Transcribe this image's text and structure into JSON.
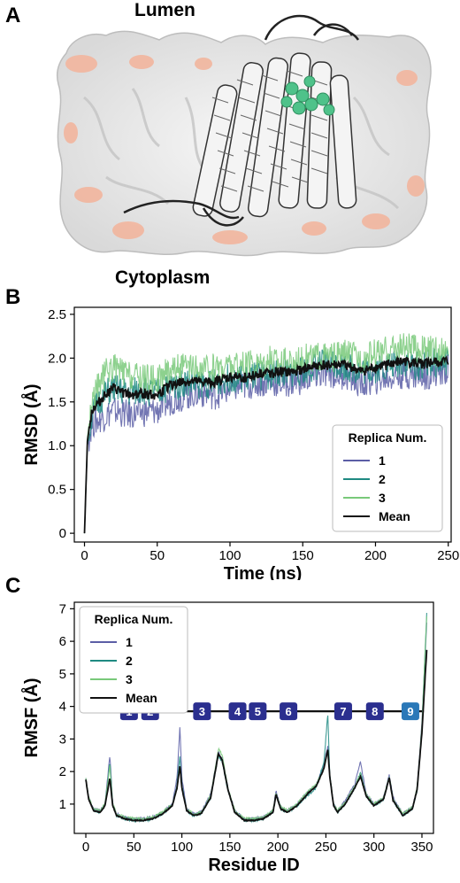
{
  "panels": {
    "a": {
      "letter": "A",
      "label_top": "Lumen",
      "label_bottom": "Cytoplasm"
    },
    "b": {
      "letter": "B"
    },
    "c": {
      "letter": "C"
    }
  },
  "colors": {
    "replica1": "#5b5ea6",
    "replica2": "#1f8a82",
    "replica3": "#79c97a",
    "mean": "#111111",
    "helix_box": "#2b2f8f",
    "helix_box_last": "#2a78b8",
    "surface": "#ececec",
    "surface_shade": "#c8c8c8",
    "hydrophobic": "#f3b39a",
    "ligand": "#4fc28a"
  },
  "chart_data": [
    {
      "type": "line",
      "panel": "B",
      "xlabel": "Time (ns)",
      "ylabel": "RMSD (Å)",
      "xlim": [
        -7,
        252
      ],
      "ylim": [
        -0.1,
        2.58
      ],
      "xticks": [
        0,
        50,
        100,
        150,
        200,
        250
      ],
      "yticks": [
        0,
        0.5,
        1.0,
        1.5,
        2.0,
        2.5
      ],
      "ytick_labels": [
        "0",
        "0.5",
        "1.0",
        "1.5",
        "2.0",
        "2.5"
      ],
      "legend_title": "Replica Num.",
      "legend_position": "lower-right",
      "series": [
        {
          "name": "1",
          "x": [
            0,
            2,
            5,
            10,
            15,
            20,
            25,
            30,
            40,
            50,
            60,
            70,
            80,
            90,
            100,
            110,
            120,
            130,
            140,
            150,
            160,
            170,
            180,
            190,
            200,
            210,
            220,
            230,
            240,
            250
          ],
          "values": [
            0,
            1.0,
            1.25,
            1.3,
            1.35,
            1.4,
            1.38,
            1.35,
            1.38,
            1.4,
            1.52,
            1.58,
            1.6,
            1.58,
            1.65,
            1.68,
            1.72,
            1.72,
            1.72,
            1.75,
            1.8,
            1.82,
            1.8,
            1.7,
            1.75,
            1.78,
            1.82,
            1.8,
            1.82,
            1.88
          ]
        },
        {
          "name": "2",
          "x": [
            0,
            2,
            5,
            10,
            15,
            20,
            25,
            30,
            40,
            50,
            60,
            70,
            80,
            90,
            100,
            110,
            120,
            130,
            140,
            150,
            160,
            170,
            180,
            190,
            200,
            210,
            220,
            230,
            240,
            250
          ],
          "values": [
            0,
            1.0,
            1.35,
            1.5,
            1.6,
            1.65,
            1.62,
            1.6,
            1.63,
            1.6,
            1.68,
            1.72,
            1.7,
            1.72,
            1.78,
            1.75,
            1.8,
            1.82,
            1.82,
            1.85,
            1.92,
            1.95,
            1.9,
            1.85,
            1.88,
            1.92,
            1.95,
            1.9,
            1.95,
            1.95
          ]
        },
        {
          "name": "3",
          "x": [
            0,
            2,
            5,
            10,
            15,
            20,
            25,
            30,
            40,
            50,
            60,
            70,
            80,
            90,
            100,
            110,
            120,
            130,
            140,
            150,
            160,
            170,
            180,
            190,
            200,
            210,
            220,
            230,
            240,
            250
          ],
          "values": [
            0,
            1.1,
            1.5,
            1.7,
            1.85,
            1.9,
            1.85,
            1.8,
            1.78,
            1.75,
            1.9,
            1.88,
            1.85,
            1.9,
            1.92,
            1.9,
            1.95,
            1.98,
            1.95,
            2.0,
            2.02,
            2.0,
            2.05,
            1.98,
            2.05,
            2.1,
            2.12,
            2.1,
            2.08,
            2.05
          ]
        },
        {
          "name": "Mean",
          "x": [
            0,
            2,
            5,
            10,
            15,
            20,
            25,
            30,
            40,
            50,
            60,
            70,
            80,
            90,
            100,
            110,
            120,
            130,
            140,
            150,
            160,
            170,
            180,
            190,
            200,
            210,
            220,
            230,
            240,
            250
          ],
          "values": [
            0,
            1.05,
            1.4,
            1.5,
            1.6,
            1.65,
            1.62,
            1.58,
            1.6,
            1.58,
            1.7,
            1.73,
            1.72,
            1.73,
            1.78,
            1.78,
            1.82,
            1.84,
            1.83,
            1.87,
            1.91,
            1.92,
            1.92,
            1.84,
            1.89,
            1.93,
            1.96,
            1.93,
            1.95,
            1.96
          ]
        }
      ]
    },
    {
      "type": "line",
      "panel": "C",
      "xlabel": "Residue ID",
      "ylabel": "RMSF (Å)",
      "xlim": [
        -12,
        362
      ],
      "ylim": [
        0.1,
        7.2
      ],
      "xticks": [
        0,
        50,
        100,
        150,
        200,
        250,
        300,
        350
      ],
      "yticks": [
        1,
        2,
        3,
        4,
        5,
        6,
        7
      ],
      "legend_title": "Replica Num.",
      "legend_position": "upper-left",
      "helix_line_y": 3.85,
      "helices": [
        {
          "label": "1",
          "x": 45
        },
        {
          "label": "2",
          "x": 67
        },
        {
          "label": "3",
          "x": 121
        },
        {
          "label": "4",
          "x": 158
        },
        {
          "label": "5",
          "x": 179
        },
        {
          "label": "6",
          "x": 211
        },
        {
          "label": "7",
          "x": 268
        },
        {
          "label": "8",
          "x": 301
        },
        {
          "label": "9",
          "x": 338
        }
      ],
      "series": [
        {
          "name": "1",
          "x": [
            0,
            3,
            8,
            15,
            20,
            25,
            28,
            32,
            40,
            50,
            60,
            70,
            80,
            90,
            95,
            98,
            100,
            105,
            112,
            120,
            130,
            138,
            142,
            148,
            155,
            165,
            175,
            185,
            195,
            198,
            203,
            210,
            220,
            232,
            240,
            248,
            252,
            254,
            258,
            262,
            270,
            280,
            286,
            292,
            300,
            310,
            316,
            320,
            330,
            340,
            345,
            350,
            355
          ],
          "values": [
            1.8,
            1.2,
            0.85,
            0.8,
            1.0,
            2.5,
            1.0,
            0.7,
            0.6,
            0.55,
            0.55,
            0.6,
            0.75,
            1.0,
            1.8,
            3.4,
            1.8,
            0.85,
            0.7,
            0.75,
            1.3,
            2.6,
            2.4,
            1.5,
            0.8,
            0.55,
            0.55,
            0.6,
            0.8,
            1.4,
            0.9,
            0.8,
            1.0,
            1.4,
            1.6,
            2.2,
            2.8,
            1.9,
            1.0,
            0.8,
            1.1,
            1.6,
            2.3,
            1.3,
            1.0,
            1.2,
            1.9,
            1.2,
            0.7,
            0.9,
            1.5,
            3.5,
            6.6
          ]
        },
        {
          "name": "2",
          "x": [
            0,
            3,
            8,
            15,
            20,
            25,
            28,
            32,
            40,
            50,
            60,
            70,
            80,
            90,
            95,
            98,
            100,
            105,
            112,
            120,
            130,
            138,
            142,
            148,
            155,
            165,
            175,
            185,
            195,
            198,
            203,
            210,
            220,
            232,
            240,
            248,
            252,
            254,
            258,
            262,
            270,
            280,
            286,
            292,
            300,
            310,
            316,
            320,
            330,
            340,
            345,
            350,
            355
          ],
          "values": [
            1.75,
            1.15,
            0.8,
            0.75,
            0.95,
            2.3,
            0.95,
            0.65,
            0.55,
            0.5,
            0.5,
            0.55,
            0.7,
            0.95,
            1.6,
            2.5,
            1.6,
            0.8,
            0.65,
            0.7,
            1.2,
            2.5,
            2.3,
            1.4,
            0.75,
            0.5,
            0.5,
            0.55,
            0.75,
            1.3,
            0.85,
            0.75,
            0.95,
            1.3,
            1.5,
            2.3,
            3.8,
            1.9,
            0.95,
            0.75,
            1.0,
            1.5,
            2.0,
            1.25,
            0.95,
            1.15,
            1.8,
            1.1,
            0.65,
            0.85,
            1.4,
            3.3,
            6.9
          ]
        },
        {
          "name": "3",
          "x": [
            0,
            3,
            8,
            15,
            20,
            25,
            28,
            32,
            40,
            50,
            60,
            70,
            80,
            90,
            95,
            98,
            100,
            105,
            112,
            120,
            130,
            138,
            142,
            148,
            155,
            165,
            175,
            185,
            195,
            198,
            203,
            210,
            220,
            232,
            240,
            248,
            252,
            254,
            258,
            262,
            270,
            280,
            286,
            292,
            300,
            310,
            316,
            320,
            330,
            340,
            345,
            350,
            355
          ],
          "values": [
            1.8,
            1.2,
            0.85,
            0.8,
            1.0,
            2.2,
            1.0,
            0.7,
            0.6,
            0.55,
            0.55,
            0.6,
            0.75,
            1.0,
            1.5,
            2.2,
            1.5,
            0.85,
            0.7,
            0.75,
            1.25,
            2.7,
            2.5,
            1.5,
            0.8,
            0.55,
            0.55,
            0.6,
            0.8,
            1.35,
            0.9,
            0.8,
            1.0,
            1.4,
            1.6,
            2.1,
            2.6,
            1.9,
            1.0,
            0.8,
            1.05,
            1.55,
            1.9,
            1.3,
            1.0,
            1.2,
            1.85,
            1.15,
            0.7,
            0.9,
            1.5,
            3.4,
            6.8
          ]
        },
        {
          "name": "Mean",
          "x": [
            0,
            3,
            8,
            15,
            20,
            25,
            28,
            32,
            40,
            50,
            60,
            70,
            80,
            90,
            95,
            98,
            100,
            105,
            112,
            120,
            130,
            138,
            142,
            148,
            155,
            165,
            175,
            185,
            195,
            198,
            203,
            210,
            220,
            232,
            240,
            248,
            252,
            254,
            258,
            262,
            270,
            280,
            286,
            292,
            300,
            310,
            316,
            320,
            330,
            340,
            345,
            350,
            355
          ],
          "values": [
            1.75,
            1.15,
            0.8,
            0.75,
            0.95,
            1.8,
            0.95,
            0.65,
            0.55,
            0.5,
            0.5,
            0.55,
            0.7,
            0.95,
            1.5,
            2.2,
            1.5,
            0.8,
            0.65,
            0.7,
            1.2,
            2.55,
            2.35,
            1.45,
            0.75,
            0.5,
            0.5,
            0.55,
            0.75,
            1.3,
            0.85,
            0.75,
            0.95,
            1.35,
            1.55,
            2.1,
            2.7,
            1.85,
            0.95,
            0.75,
            1.0,
            1.5,
            1.85,
            1.25,
            0.95,
            1.15,
            1.8,
            1.1,
            0.65,
            0.85,
            1.45,
            3.2,
            5.75
          ]
        }
      ]
    }
  ]
}
